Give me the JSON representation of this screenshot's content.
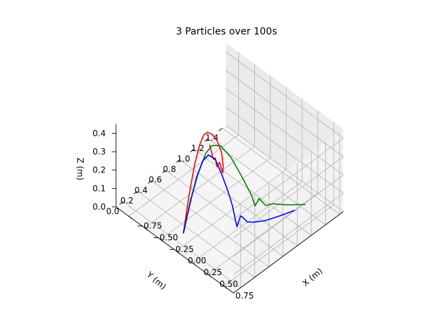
{
  "chart_data": {
    "type": "line",
    "projection": "3d",
    "title": "3 Particles over 100s",
    "xlabel": "X (m)",
    "ylabel": "Y (m)",
    "zlabel": "Z (m)",
    "xlim": [
      -0.95,
      0.9
    ],
    "ylim": [
      -0.1,
      1.45
    ],
    "zlim": [
      0.0,
      0.45
    ],
    "x_ticks": [
      "−0.75",
      "−0.50",
      "−0.25",
      "0.00",
      "0.25",
      "0.50",
      "0.75"
    ],
    "y_ticks": [
      "0.0",
      "0.2",
      "0.4",
      "0.6",
      "0.8",
      "1.0",
      "1.2",
      "1.4"
    ],
    "z_ticks": [
      "0.0",
      "0.1",
      "0.2",
      "0.3",
      "0.4"
    ],
    "x_tick_values": [
      -0.75,
      -0.5,
      -0.25,
      0.0,
      0.25,
      0.5,
      0.75
    ],
    "y_tick_values": [
      0.0,
      0.2,
      0.4,
      0.6,
      0.8,
      1.0,
      1.2,
      1.4
    ],
    "z_tick_values": [
      0.0,
      0.1,
      0.2,
      0.3,
      0.4
    ],
    "grid": true,
    "legend": "none",
    "colors": {
      "pane": "#ebebeb",
      "pane_side": "#f2f2f2",
      "pane_floor": "#f5f5f5",
      "grid": "#b0b0b0"
    },
    "series": [
      {
        "color": "#ff0000",
        "points": [
          [
            0,
            0,
            0.07
          ],
          [
            -0.05,
            0.12,
            0.22
          ],
          [
            -0.1,
            0.25,
            0.35
          ],
          [
            -0.13,
            0.35,
            0.42
          ],
          [
            -0.15,
            0.42,
            0.445
          ],
          [
            -0.18,
            0.5,
            0.43
          ],
          [
            -0.22,
            0.6,
            0.38
          ],
          [
            -0.28,
            0.72,
            0.3
          ],
          [
            -0.35,
            0.85,
            0.18
          ],
          [
            -0.4,
            0.92,
            0.07
          ],
          [
            -0.43,
            0.94,
            0.02
          ],
          [
            -0.47,
            0.93,
            0.07
          ],
          [
            -0.52,
            0.94,
            0.03
          ],
          [
            -0.57,
            0.96,
            0.06
          ],
          [
            -0.61,
            0.98,
            0.035
          ],
          [
            -0.65,
            1.0,
            0.025
          ],
          [
            -0.7,
            1.03,
            0.028
          ],
          [
            -0.75,
            1.06,
            0.03
          ],
          [
            -0.79,
            1.08,
            0.04
          ]
        ]
      },
      {
        "color": "#008000",
        "points": [
          [
            0,
            0,
            0.07
          ],
          [
            0.0,
            0.1,
            0.22
          ],
          [
            0.01,
            0.2,
            0.34
          ],
          [
            0.02,
            0.3,
            0.425
          ],
          [
            0.03,
            0.38,
            0.445
          ],
          [
            0.05,
            0.48,
            0.42
          ],
          [
            0.08,
            0.6,
            0.33
          ],
          [
            0.12,
            0.72,
            0.2
          ],
          [
            0.16,
            0.82,
            0.08
          ],
          [
            0.18,
            0.85,
            0.02
          ],
          [
            0.21,
            0.88,
            0.06
          ],
          [
            0.26,
            0.93,
            0.02
          ],
          [
            0.31,
            0.98,
            0.028
          ],
          [
            0.36,
            1.04,
            0.02
          ],
          [
            0.42,
            1.12,
            0.01
          ],
          [
            0.48,
            1.2,
            0.004
          ],
          [
            0.52,
            1.25,
            0.0
          ]
        ]
      },
      {
        "color": "#0000ff",
        "points": [
          [
            0,
            0,
            0.07
          ],
          [
            0.02,
            0.08,
            0.22
          ],
          [
            0.04,
            0.15,
            0.34
          ],
          [
            0.06,
            0.22,
            0.415
          ],
          [
            0.08,
            0.28,
            0.435
          ],
          [
            0.11,
            0.35,
            0.4
          ],
          [
            0.14,
            0.42,
            0.3
          ],
          [
            0.17,
            0.48,
            0.2
          ],
          [
            0.19,
            0.52,
            0.12
          ],
          [
            0.21,
            0.55,
            0.03
          ],
          [
            0.22,
            0.56,
            0.0
          ],
          [
            0.23,
            0.6,
            0.05
          ],
          [
            0.24,
            0.62,
            0.04
          ],
          [
            0.27,
            0.66,
            0.01
          ],
          [
            0.32,
            0.72,
            0.005
          ],
          [
            0.38,
            0.82,
            0.0
          ],
          [
            0.44,
            0.96,
            0.0
          ],
          [
            0.5,
            1.12,
            0.0
          ]
        ]
      }
    ]
  }
}
